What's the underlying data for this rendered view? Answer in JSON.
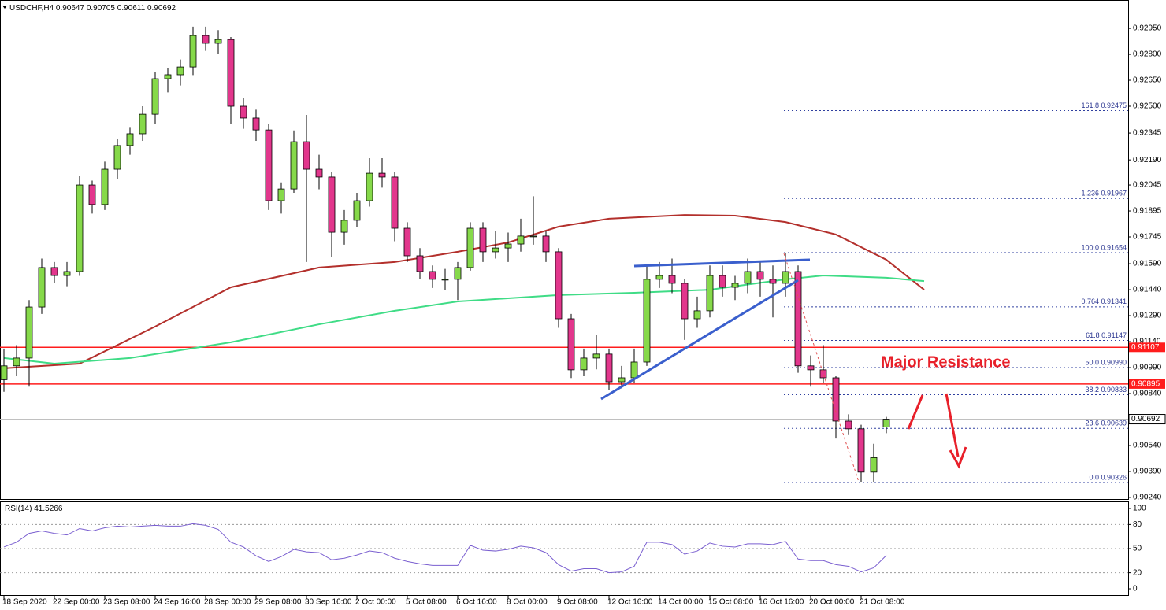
{
  "header": {
    "symbol": "USDCHF,H4"
  },
  "chart_data": {
    "type": "candlestick",
    "ohlc": [
      [
        0.9092,
        0.911,
        0.9085,
        0.91
      ],
      [
        0.91,
        0.9112,
        0.9094,
        0.91045
      ],
      [
        0.91045,
        0.9138,
        0.9088,
        0.9134
      ],
      [
        0.9134,
        0.9162,
        0.913,
        0.91568
      ],
      [
        0.91568,
        0.916,
        0.9148,
        0.91522
      ],
      [
        0.91522,
        0.916,
        0.9146,
        0.91545
      ],
      [
        0.91545,
        0.921,
        0.9152,
        0.92045
      ],
      [
        0.92045,
        0.9207,
        0.9188,
        0.91932
      ],
      [
        0.91932,
        0.9218,
        0.919,
        0.92136
      ],
      [
        0.92136,
        0.9231,
        0.9208,
        0.92273
      ],
      [
        0.92273,
        0.9238,
        0.9222,
        0.92341
      ],
      [
        0.92341,
        0.925,
        0.923,
        0.92454
      ],
      [
        0.92454,
        0.927,
        0.924,
        0.92659
      ],
      [
        0.92659,
        0.9272,
        0.9258,
        0.92682
      ],
      [
        0.92682,
        0.9277,
        0.9262,
        0.92727
      ],
      [
        0.92727,
        0.9296,
        0.9268,
        0.92909
      ],
      [
        0.92909,
        0.9296,
        0.9282,
        0.92864
      ],
      [
        0.92864,
        0.9294,
        0.928,
        0.92886
      ],
      [
        0.92886,
        0.929,
        0.924,
        0.925
      ],
      [
        0.925,
        0.9255,
        0.9237,
        0.92432
      ],
      [
        0.92432,
        0.9248,
        0.923,
        0.92363
      ],
      [
        0.92363,
        0.924,
        0.919,
        0.91954
      ],
      [
        0.91954,
        0.9206,
        0.9188,
        0.92022
      ],
      [
        0.92022,
        0.9236,
        0.92,
        0.92295
      ],
      [
        0.92295,
        0.9245,
        0.916,
        0.92136
      ],
      [
        0.92136,
        0.9222,
        0.9202,
        0.92091
      ],
      [
        0.92091,
        0.9212,
        0.9163,
        0.91772
      ],
      [
        0.91772,
        0.919,
        0.917,
        0.91841
      ],
      [
        0.91841,
        0.92,
        0.918,
        0.91954
      ],
      [
        0.91954,
        0.922,
        0.9192,
        0.92113
      ],
      [
        0.92113,
        0.922,
        0.9203,
        0.92091
      ],
      [
        0.92091,
        0.9212,
        0.9172,
        0.91795
      ],
      [
        0.91795,
        0.9183,
        0.916,
        0.91636
      ],
      [
        0.91636,
        0.9168,
        0.915,
        0.91545
      ],
      [
        0.91545,
        0.9158,
        0.9145,
        0.915
      ],
      [
        0.915,
        0.9156,
        0.9144,
        0.915
      ],
      [
        0.915,
        0.916,
        0.9138,
        0.91568
      ],
      [
        0.91568,
        0.9183,
        0.9155,
        0.91795
      ],
      [
        0.91795,
        0.9183,
        0.916,
        0.91659
      ],
      [
        0.91659,
        0.9178,
        0.9162,
        0.91681
      ],
      [
        0.91681,
        0.9177,
        0.916,
        0.91704
      ],
      [
        0.91704,
        0.9185,
        0.9166,
        0.9175
      ],
      [
        0.9175,
        0.9198,
        0.917,
        0.9175
      ],
      [
        0.9175,
        0.9178,
        0.916,
        0.91659
      ],
      [
        0.91659,
        0.9168,
        0.9122,
        0.91272
      ],
      [
        0.91272,
        0.913,
        0.9093,
        0.90977
      ],
      [
        0.90977,
        0.911,
        0.9094,
        0.91045
      ],
      [
        0.91045,
        0.9118,
        0.9098,
        0.91068
      ],
      [
        0.91068,
        0.911,
        0.9086,
        0.90908
      ],
      [
        0.90908,
        0.91,
        0.9087,
        0.90931
      ],
      [
        0.90931,
        0.911,
        0.909,
        0.91022
      ],
      [
        0.91022,
        0.9158,
        0.91,
        0.915
      ],
      [
        0.915,
        0.916,
        0.9145,
        0.91522
      ],
      [
        0.91522,
        0.9162,
        0.9142,
        0.91477
      ],
      [
        0.91477,
        0.915,
        0.9115,
        0.91272
      ],
      [
        0.91272,
        0.914,
        0.9122,
        0.91318
      ],
      [
        0.91318,
        0.9158,
        0.9128,
        0.91522
      ],
      [
        0.91522,
        0.9158,
        0.914,
        0.91454
      ],
      [
        0.91454,
        0.9152,
        0.9138,
        0.91477
      ],
      [
        0.91477,
        0.9162,
        0.9142,
        0.91545
      ],
      [
        0.91545,
        0.916,
        0.914,
        0.915
      ],
      [
        0.915,
        0.9158,
        0.9128,
        0.91477
      ],
      [
        0.91477,
        0.91654,
        0.914,
        0.91545
      ],
      [
        0.91545,
        0.9158,
        0.9096,
        0.91
      ],
      [
        0.91,
        0.9106,
        0.9088,
        0.90977
      ],
      [
        0.90977,
        0.9112,
        0.909,
        0.90931
      ],
      [
        0.90931,
        0.9094,
        0.9058,
        0.90681
      ],
      [
        0.90681,
        0.9072,
        0.906,
        0.90636
      ],
      [
        0.90636,
        0.9066,
        0.9033,
        0.90386
      ],
      [
        0.90386,
        0.9055,
        0.90326,
        0.9047
      ],
      [
        0.90647,
        0.90705,
        0.90611,
        0.90692
      ]
    ],
    "up_color": "#86d94a",
    "down_color": "#e2368c",
    "categories": [
      "18 Sep 2020",
      null,
      null,
      null,
      "22 Sep 00:00",
      null,
      null,
      null,
      "23 Sep 08:00",
      null,
      null,
      null,
      "24 Sep 16:00",
      null,
      null,
      null,
      "28 Sep 00:00",
      null,
      null,
      null,
      "29 Sep 08:00",
      null,
      null,
      null,
      "30 Sep 16:00",
      null,
      null,
      null,
      "2 Oct 00:00",
      null,
      null,
      null,
      "5 Oct 08:00",
      null,
      null,
      null,
      "6 Oct 16:00",
      null,
      null,
      null,
      "8 Oct 00:00",
      null,
      null,
      null,
      "9 Oct 08:00",
      null,
      null,
      null,
      "12 Oct 16:00",
      null,
      null,
      null,
      "14 Oct 00:00",
      null,
      null,
      null,
      "15 Oct 08:00",
      null,
      null,
      null,
      "16 Oct 16:00",
      null,
      null,
      null,
      "20 Oct 00:00",
      null,
      null,
      null,
      "21 Oct 08:00",
      null,
      null
    ],
    "ylim": [
      0.90226,
      0.93114
    ],
    "yticks": [
      {
        "value": 0.9295,
        "label": "0.92950"
      },
      {
        "value": 0.928,
        "label": "0.92800"
      },
      {
        "value": 0.9265,
        "label": "0.92650"
      },
      {
        "value": 0.925,
        "label": "0.92500"
      },
      {
        "value": 0.92345,
        "label": "0.92345"
      },
      {
        "value": 0.9219,
        "label": "0.92190"
      },
      {
        "value": 0.92045,
        "label": "0.92045"
      },
      {
        "value": 0.91895,
        "label": "0.91895"
      },
      {
        "value": 0.91745,
        "label": "0.91745"
      },
      {
        "value": 0.9159,
        "label": "0.91590"
      },
      {
        "value": 0.9144,
        "label": "0.91440"
      },
      {
        "value": 0.9129,
        "label": "0.91290"
      },
      {
        "value": 0.9114,
        "label": "0.91140"
      },
      {
        "value": 0.9099,
        "label": "0.90990"
      },
      {
        "value": 0.9084,
        "label": "0.90840"
      },
      {
        "value": 0.9054,
        "label": "0.90540"
      },
      {
        "value": 0.9039,
        "label": "0.90390"
      },
      {
        "value": 0.9024,
        "label": "0.90240"
      }
    ],
    "lines": [
      {
        "color": "#b3302c",
        "x": [
          0,
          6,
          12,
          18,
          25,
          31,
          36,
          40,
          44,
          48,
          54,
          58,
          62,
          66,
          70,
          73
        ],
        "values": [
          0.90986,
          0.91013,
          0.91227,
          0.91454,
          0.91568,
          0.916,
          0.91659,
          0.91713,
          0.91804,
          0.9185,
          0.91872,
          0.91868,
          0.91831,
          0.91759,
          0.91613,
          0.9144
        ]
      },
      {
        "color": "#3fdc86",
        "x": [
          0,
          4,
          10,
          18,
          25,
          31,
          36,
          44,
          50,
          56,
          62,
          65,
          70,
          73
        ],
        "values": [
          0.91045,
          0.91013,
          0.91045,
          0.91136,
          0.9124,
          0.91318,
          0.91372,
          0.91409,
          0.91422,
          0.9144,
          0.915,
          0.91522,
          0.91509,
          0.9149
        ]
      }
    ],
    "levels": [
      0.91107,
      0.90895
    ],
    "level_color": "#ff1c1c",
    "fibonacci": [
      {
        "label": "161.8 0.92475",
        "value": 0.92475
      },
      {
        "label": "1.236 0.91967",
        "value": 0.91967
      },
      {
        "label": "100.0 0.91654",
        "value": 0.91654
      },
      {
        "label": "0.764 0.91341",
        "value": 0.91341
      },
      {
        "label": "61.8 0.91147",
        "value": 0.91147
      },
      {
        "label": "50.0 0.90990",
        "value": 0.9099
      },
      {
        "label": "38.2 0.90833",
        "value": 0.90833
      },
      {
        "label": "23.6 0.90639",
        "value": 0.90639
      },
      {
        "label": "0.0 0.90326",
        "value": 0.90326
      }
    ],
    "annotation": "Major Resistance",
    "rsi": {
      "title": "RSI(14)",
      "color": "#7a5fd0",
      "ylim": [
        -8.8,
        108.8
      ],
      "yticks": [
        0,
        20,
        50,
        80,
        100
      ],
      "levels": [
        20,
        50,
        80
      ],
      "values": [
        52,
        58,
        69,
        72,
        69,
        67,
        75,
        72,
        76,
        78,
        77,
        78,
        79,
        78,
        78,
        81,
        79,
        74,
        58,
        52,
        41,
        34,
        40,
        49,
        46,
        45,
        36,
        38,
        42,
        47,
        45,
        38,
        34,
        31,
        29,
        29,
        29,
        54,
        48,
        47,
        49,
        53,
        51,
        45,
        30,
        22,
        25,
        25,
        20,
        21,
        28,
        58,
        58,
        55,
        43,
        47,
        57,
        53,
        52,
        56,
        56,
        55,
        59,
        37,
        35,
        35,
        30,
        28,
        21,
        26,
        41.5266
      ]
    }
  }
}
